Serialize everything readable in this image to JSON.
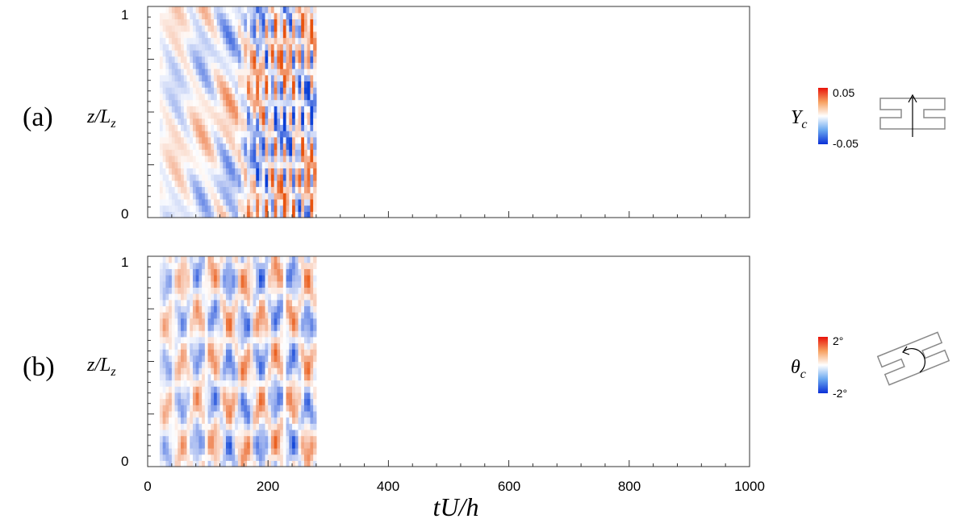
{
  "chart_data": [
    {
      "type": "heatmap",
      "panel_label": "(a)",
      "ylabel": {
        "base": "z/L",
        "sub": "z"
      },
      "xlim": [
        0,
        1000
      ],
      "ylim": [
        0,
        1
      ],
      "y_tick_labels": [
        {
          "value": 0,
          "label": "0"
        },
        {
          "value": 1,
          "label": "1"
        }
      ],
      "data_extent_x": [
        20,
        280
      ],
      "variable": {
        "base": "Y",
        "sub": "c"
      },
      "colorbar": {
        "max_label": "0.05",
        "min_label": "-0.05",
        "range": [
          -0.05,
          0.05
        ]
      },
      "schematic": "plunge-motion-icon",
      "pattern": "vertical displacement amplitude growing with time; high-frequency streaks after tU/h ≈ 150"
    },
    {
      "type": "heatmap",
      "panel_label": "(b)",
      "ylabel": {
        "base": "z/L",
        "sub": "z"
      },
      "xlim": [
        0,
        1000
      ],
      "ylim": [
        0,
        1
      ],
      "y_tick_labels": [
        {
          "value": 0,
          "label": "0"
        },
        {
          "value": 1,
          "label": "1"
        }
      ],
      "data_extent_x": [
        20,
        280
      ],
      "variable": {
        "base": "θ",
        "sub": "c"
      },
      "colorbar": {
        "max_label": "2°",
        "min_label": "-2°",
        "range": [
          -2,
          2
        ]
      },
      "schematic": "torsion-motion-icon",
      "pattern": "twist angle oscillation with spanwise lens-shaped cells"
    }
  ],
  "shared_x_axis": {
    "label": "tU/h",
    "ticks": [
      0,
      200,
      400,
      600,
      800,
      1000
    ],
    "tick_labels": [
      "0",
      "200",
      "400",
      "600",
      "800",
      "1000"
    ]
  },
  "colors": {
    "positive": "#e8530e",
    "negative": "#0a3fd6",
    "zero": "#ffffff"
  }
}
